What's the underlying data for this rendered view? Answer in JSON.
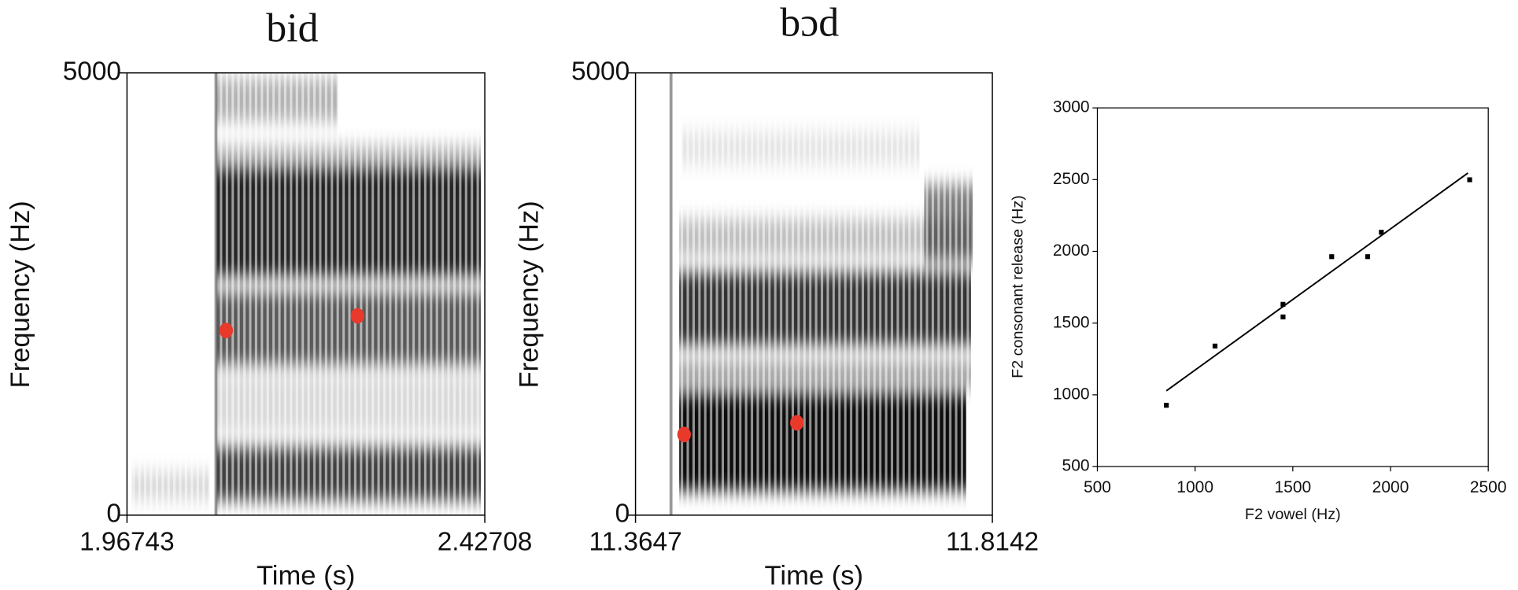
{
  "chart_data": [
    {
      "type": "spectrogram",
      "title": "bid",
      "xlabel": "Time (s)",
      "ylabel": "Frequency (Hz)",
      "xlim": [
        1.96743,
        2.42708
      ],
      "xticks": [
        1.96743,
        2.42708
      ],
      "ylim": [
        0,
        5000
      ],
      "yticks": [
        0,
        5000
      ],
      "x": [
        2.0948,
        2.2635
      ],
      "values": [
        2088,
        2253
      ],
      "color": "#e8392b"
    },
    {
      "type": "spectrogram",
      "title": "bɔd",
      "xlabel": "Time (s)",
      "ylabel": "Frequency (Hz)",
      "xlim": [
        11.3647,
        11.8142
      ],
      "xticks": [
        11.3647,
        11.8142
      ],
      "ylim": [
        0,
        5000
      ],
      "yticks": [
        0,
        5000
      ],
      "x": [
        11.4259,
        11.568
      ],
      "values": [
        912,
        1044
      ],
      "color": "#e8392b"
    },
    {
      "type": "scatter",
      "xlabel": "F2 vowel (Hz)",
      "ylabel": "F2 consonant release (Hz)",
      "xlim": [
        500,
        2500
      ],
      "xticks": [
        500,
        1000,
        1500,
        2000,
        2500
      ],
      "ylim": [
        500,
        3000
      ],
      "yticks": [
        500,
        1000,
        1500,
        2000,
        2500,
        3000
      ],
      "x": [
        853,
        1102,
        1450,
        1450,
        1699,
        1883,
        1953,
        2405
      ],
      "values": [
        927,
        1340,
        1631,
        1543,
        1963,
        1963,
        2133,
        2499
      ],
      "color": "#000000",
      "fit_line": {
        "x": [
          853,
          2396
        ],
        "values": [
          1028,
          2546
        ]
      }
    }
  ]
}
